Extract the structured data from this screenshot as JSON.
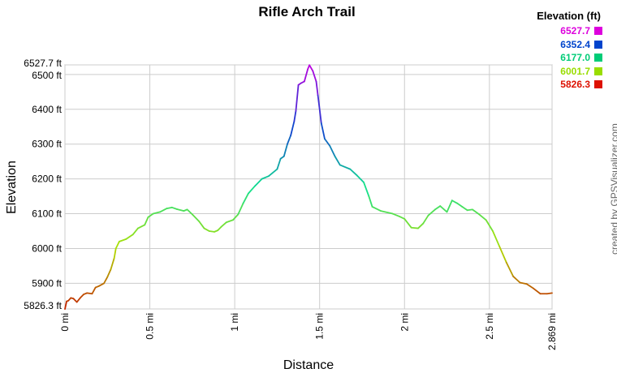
{
  "chart_data": {
    "type": "line",
    "title": "Rifle Arch Trail",
    "xlabel": "Distance",
    "ylabel": "Elevation",
    "xlim": [
      0,
      2.869
    ],
    "ylim": [
      5826.3,
      6527.7
    ],
    "x_unit": "mi",
    "y_unit": "ft",
    "grid": true,
    "x_ticks": [
      {
        "v": 0,
        "label": "0 mi"
      },
      {
        "v": 0.5,
        "label": "0.5 mi"
      },
      {
        "v": 1,
        "label": "1 mi"
      },
      {
        "v": 1.5,
        "label": "1.5 mi"
      },
      {
        "v": 2,
        "label": "2 mi"
      },
      {
        "v": 2.5,
        "label": "2.5 mi"
      },
      {
        "v": 2.869,
        "label": "2.869 mi"
      }
    ],
    "y_ticks": [
      {
        "v": 5826.3,
        "label": "5826.3 ft"
      },
      {
        "v": 5900,
        "label": "5900 ft"
      },
      {
        "v": 6000,
        "label": "6000 ft"
      },
      {
        "v": 6100,
        "label": "6100 ft"
      },
      {
        "v": 6200,
        "label": "6200 ft"
      },
      {
        "v": 6300,
        "label": "6300 ft"
      },
      {
        "v": 6400,
        "label": "6400 ft"
      },
      {
        "v": 6500,
        "label": "6500 ft"
      },
      {
        "v": 6527.7,
        "label": "6527.7 ft"
      }
    ],
    "color_scale": [
      {
        "v": 5826.3,
        "color": "#c41e00"
      },
      {
        "v": 6001.7,
        "color": "#b0e000"
      },
      {
        "v": 6177.0,
        "color": "#10e090"
      },
      {
        "v": 6352.4,
        "color": "#1040d0"
      },
      {
        "v": 6527.7,
        "color": "#c000e0"
      }
    ],
    "legend": {
      "title": "Elevation (ft)",
      "placement": "top-right",
      "items": [
        {
          "label": "6527.7",
          "color": "#dd00dd"
        },
        {
          "label": "6352.4",
          "color": "#0044cc"
        },
        {
          "label": "6177.0",
          "color": "#00cc77"
        },
        {
          "label": "6001.7",
          "color": "#99dd00"
        },
        {
          "label": "5826.3",
          "color": "#dd1100"
        }
      ]
    },
    "series": [
      {
        "points": [
          [
            0.0,
            5826
          ],
          [
            0.01,
            5848
          ],
          [
            0.02,
            5850
          ],
          [
            0.035,
            5858
          ],
          [
            0.05,
            5856
          ],
          [
            0.07,
            5846
          ],
          [
            0.09,
            5858
          ],
          [
            0.11,
            5868
          ],
          [
            0.13,
            5872
          ],
          [
            0.16,
            5870
          ],
          [
            0.18,
            5888
          ],
          [
            0.2,
            5892
          ],
          [
            0.23,
            5900
          ],
          [
            0.25,
            5918
          ],
          [
            0.27,
            5940
          ],
          [
            0.29,
            5972
          ],
          [
            0.3,
            6000
          ],
          [
            0.32,
            6020
          ],
          [
            0.36,
            6027
          ],
          [
            0.4,
            6040
          ],
          [
            0.43,
            6058
          ],
          [
            0.47,
            6068
          ],
          [
            0.49,
            6090
          ],
          [
            0.52,
            6100
          ],
          [
            0.56,
            6105
          ],
          [
            0.6,
            6115
          ],
          [
            0.63,
            6118
          ],
          [
            0.66,
            6113
          ],
          [
            0.7,
            6108
          ],
          [
            0.72,
            6112
          ],
          [
            0.75,
            6098
          ],
          [
            0.79,
            6078
          ],
          [
            0.82,
            6058
          ],
          [
            0.85,
            6050
          ],
          [
            0.88,
            6048
          ],
          [
            0.9,
            6052
          ],
          [
            0.92,
            6062
          ],
          [
            0.95,
            6075
          ],
          [
            0.99,
            6082
          ],
          [
            1.02,
            6098
          ],
          [
            1.05,
            6130
          ],
          [
            1.08,
            6158
          ],
          [
            1.12,
            6180
          ],
          [
            1.16,
            6200
          ],
          [
            1.2,
            6208
          ],
          [
            1.25,
            6228
          ],
          [
            1.27,
            6258
          ],
          [
            1.29,
            6265
          ],
          [
            1.31,
            6300
          ],
          [
            1.33,
            6325
          ],
          [
            1.35,
            6365
          ],
          [
            1.36,
            6395
          ],
          [
            1.375,
            6470
          ],
          [
            1.39,
            6475
          ],
          [
            1.41,
            6480
          ],
          [
            1.43,
            6515
          ],
          [
            1.44,
            6527
          ],
          [
            1.46,
            6510
          ],
          [
            1.48,
            6480
          ],
          [
            1.49,
            6440
          ],
          [
            1.51,
            6360
          ],
          [
            1.53,
            6315
          ],
          [
            1.56,
            6295
          ],
          [
            1.59,
            6265
          ],
          [
            1.62,
            6240
          ],
          [
            1.68,
            6228
          ],
          [
            1.72,
            6210
          ],
          [
            1.76,
            6190
          ],
          [
            1.79,
            6150
          ],
          [
            1.81,
            6120
          ],
          [
            1.86,
            6108
          ],
          [
            1.93,
            6100
          ],
          [
            1.97,
            6092
          ],
          [
            2.0,
            6085
          ],
          [
            2.04,
            6060
          ],
          [
            2.08,
            6058
          ],
          [
            2.11,
            6072
          ],
          [
            2.14,
            6095
          ],
          [
            2.18,
            6112
          ],
          [
            2.21,
            6122
          ],
          [
            2.25,
            6105
          ],
          [
            2.28,
            6138
          ],
          [
            2.31,
            6130
          ],
          [
            2.34,
            6120
          ],
          [
            2.37,
            6110
          ],
          [
            2.4,
            6112
          ],
          [
            2.44,
            6098
          ],
          [
            2.48,
            6082
          ],
          [
            2.52,
            6050
          ],
          [
            2.56,
            6005
          ],
          [
            2.6,
            5960
          ],
          [
            2.64,
            5920
          ],
          [
            2.68,
            5902
          ],
          [
            2.72,
            5898
          ],
          [
            2.76,
            5885
          ],
          [
            2.8,
            5870
          ],
          [
            2.84,
            5870
          ],
          [
            2.869,
            5872
          ]
        ]
      }
    ]
  },
  "credit": "created by GPSVisualizer.com"
}
